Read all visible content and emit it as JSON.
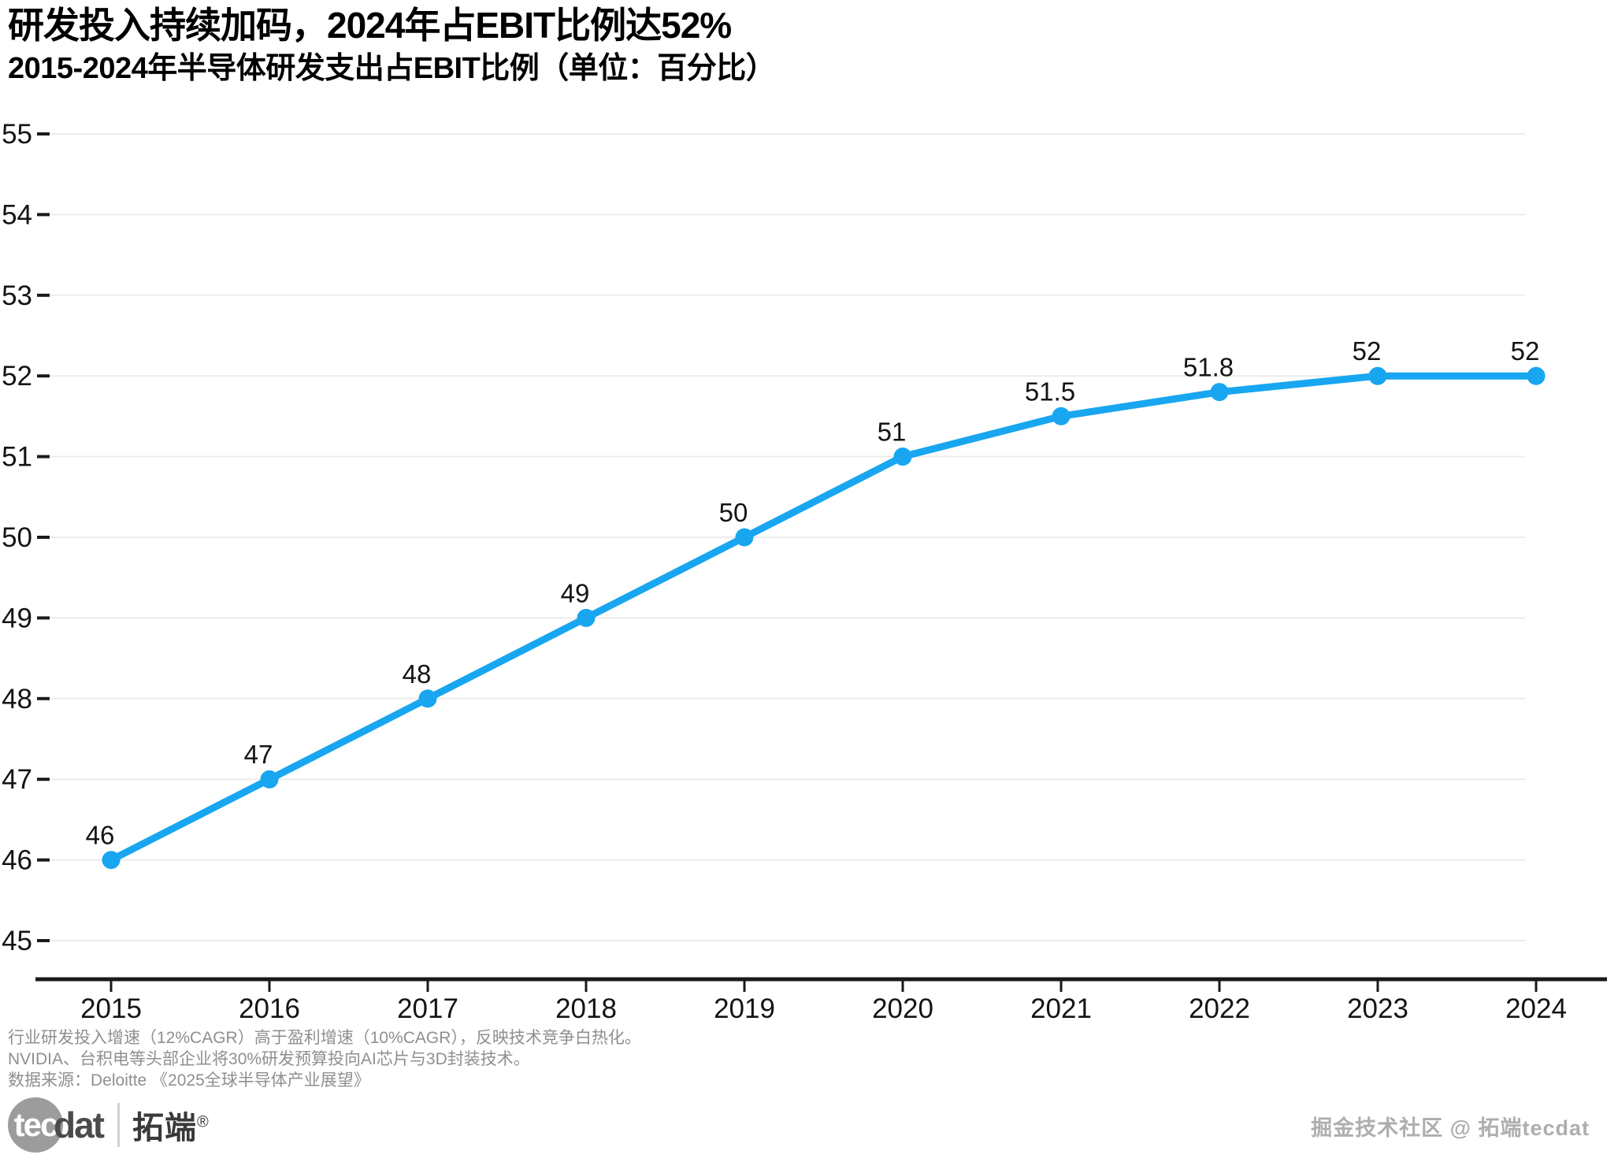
{
  "header": {
    "title": "研发投入持续加码，2024年占EBIT比例达52%",
    "subtitle": "2015-2024年半导体研发支出占EBIT比例（单位：百分比）"
  },
  "chart_data": {
    "type": "line",
    "title": "研发投入持续加码，2024年占EBIT比例达52%",
    "subtitle": "2015-2024年半导体研发支出占EBIT比例（单位：百分比）",
    "categories": [
      "2015",
      "2016",
      "2017",
      "2018",
      "2019",
      "2020",
      "2021",
      "2022",
      "2023",
      "2024"
    ],
    "values": [
      46,
      47,
      48,
      49,
      50,
      51,
      51.5,
      51.8,
      52,
      52
    ],
    "point_labels": [
      "46",
      "47",
      "48",
      "49",
      "50",
      "51",
      "51.5",
      "51.8",
      "52",
      "52"
    ],
    "xlabel": "",
    "ylabel": "",
    "ylim": [
      45,
      55
    ],
    "yticks": [
      45,
      46,
      47,
      48,
      49,
      50,
      51,
      52,
      53,
      54,
      55
    ],
    "grid": true,
    "legend": "none",
    "line_color": "#18a6f0",
    "marker_color": "#18a6f0",
    "gridline_color": "#ececec",
    "axis_color": "#1a1a1a"
  },
  "footer": {
    "notes": [
      "行业研发投入增速（12%CAGR）高于盈利增速（10%CAGR），反映技术竞争白热化。",
      "NVIDIA、台积电等头部企业将30%研发预算投向AI芯片与3D封装技术。",
      "数据来源：Deloitte 《2025全球半导体产业展望》"
    ]
  },
  "branding": {
    "logo_circle_text": "tec",
    "logo_suffix": "dat",
    "logo_name": "拓端",
    "logo_reg": "®",
    "watermark": "掘金技术社区 @ 拓端tecdat"
  }
}
